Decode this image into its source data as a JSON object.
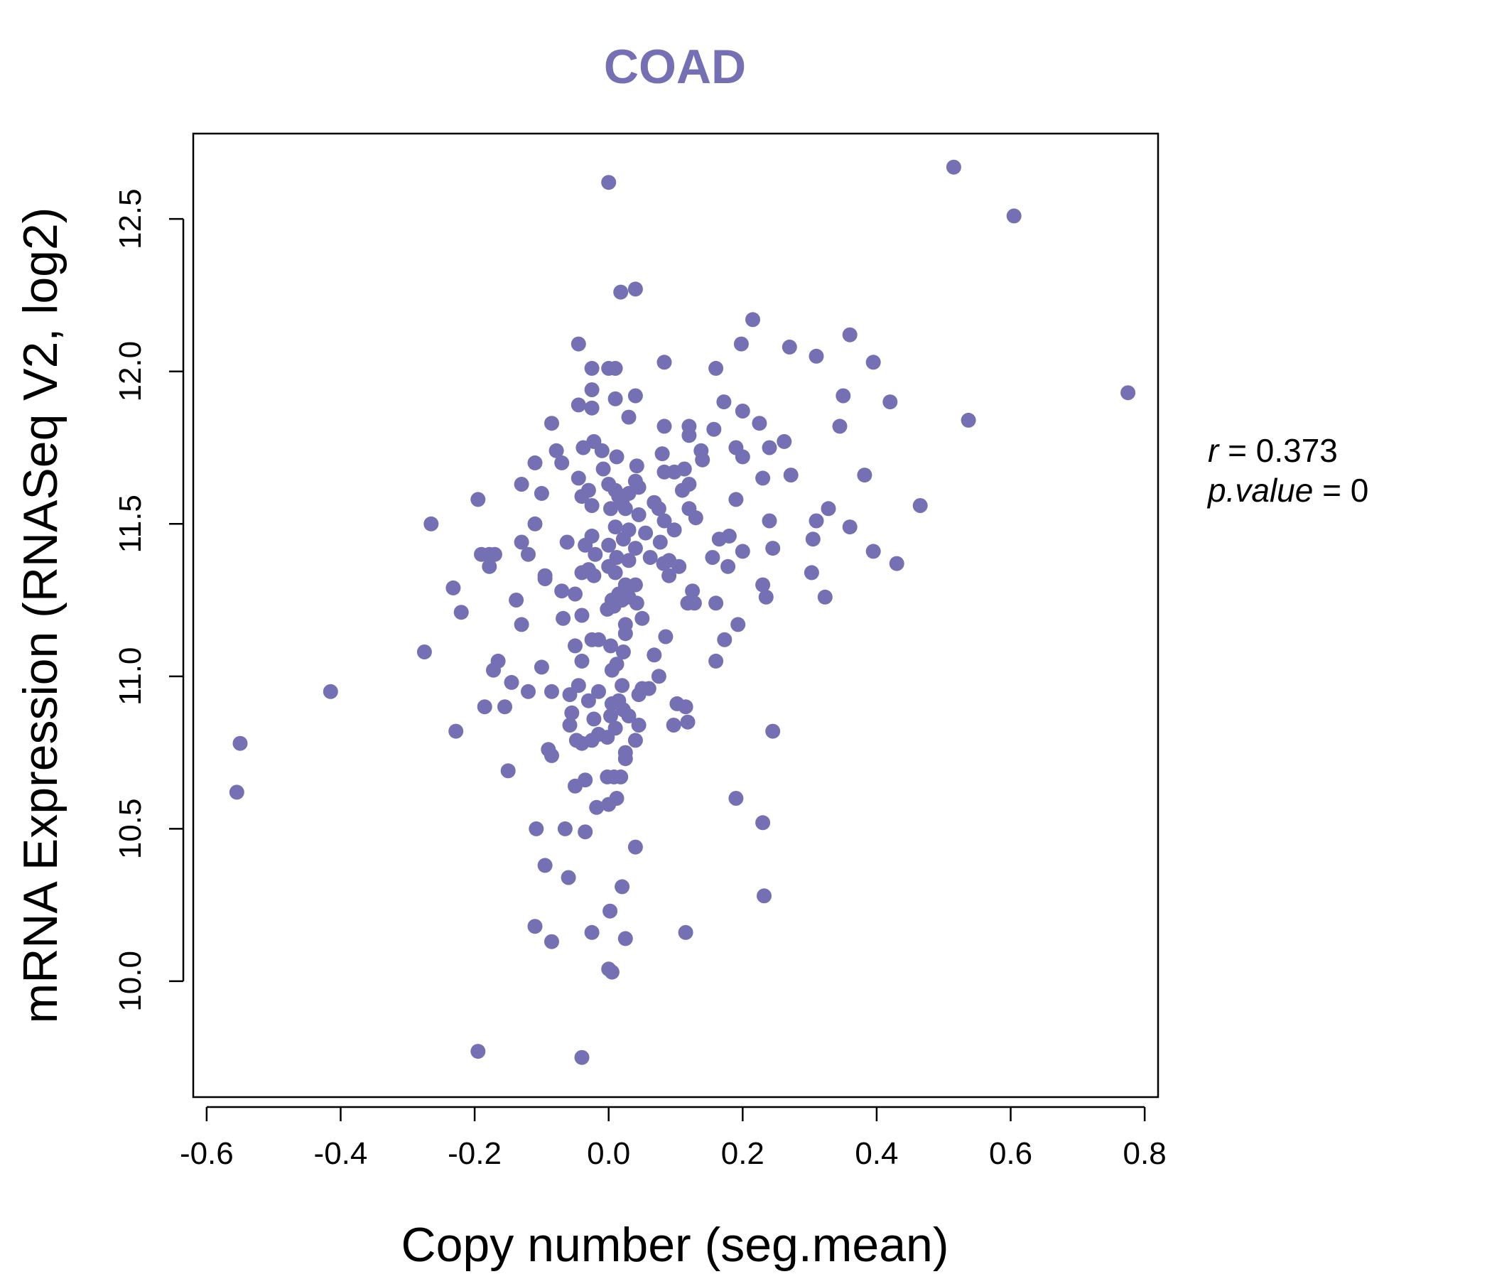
{
  "colors": {
    "accent": "#7570b3",
    "axis": "#000000",
    "background": "#ffffff"
  },
  "chart_data": {
    "type": "scatter",
    "title": "COAD",
    "xlabel": "Copy number (seg.mean)",
    "ylabel": "mRNA Expression (RNASeq V2, log2)",
    "xlim": [
      -0.62,
      0.82
    ],
    "ylim": [
      9.62,
      12.78
    ],
    "xticks": [
      -0.6,
      -0.4,
      -0.2,
      0.0,
      0.2,
      0.4,
      0.6,
      0.8
    ],
    "xtick_labels": [
      "-0.6",
      "-0.4",
      "-0.2",
      "0.0",
      "0.2",
      "0.4",
      "0.6",
      "0.8"
    ],
    "yticks": [
      10.0,
      10.5,
      11.0,
      11.5,
      12.0,
      12.5
    ],
    "ytick_labels": [
      "10.0",
      "10.5",
      "11.0",
      "11.5",
      "12.0",
      "12.5"
    ],
    "grid": false,
    "annotation": {
      "r_label": "r",
      "r_eq": " = ",
      "r_value": "0.373",
      "p_label": "p.value",
      "p_eq": " = ",
      "p_value": "0"
    },
    "points": [
      [
        0.0,
        12.62
      ],
      [
        0.515,
        12.67
      ],
      [
        0.605,
        12.51
      ],
      [
        0.775,
        11.93
      ],
      [
        0.42,
        11.9
      ],
      [
        0.35,
        11.92
      ],
      [
        0.537,
        11.84
      ],
      [
        0.345,
        11.82
      ],
      [
        0.382,
        11.66
      ],
      [
        0.465,
        11.56
      ],
      [
        0.328,
        11.55
      ],
      [
        0.31,
        11.51
      ],
      [
        0.36,
        11.49
      ],
      [
        0.305,
        11.45
      ],
      [
        0.395,
        11.41
      ],
      [
        0.43,
        11.37
      ],
      [
        0.303,
        11.34
      ],
      [
        0.323,
        11.26
      ],
      [
        0.04,
        12.27
      ],
      [
        0.018,
        12.26
      ],
      [
        0.215,
        12.17
      ],
      [
        0.36,
        12.12
      ],
      [
        0.27,
        12.08
      ],
      [
        0.198,
        12.09
      ],
      [
        0.31,
        12.05
      ],
      [
        0.395,
        12.03
      ],
      [
        -0.045,
        12.09
      ],
      [
        0.083,
        12.03
      ],
      [
        0.16,
        12.01
      ],
      [
        0.0,
        12.01
      ],
      [
        0.01,
        12.01
      ],
      [
        -0.025,
        12.01
      ],
      [
        -0.025,
        11.94
      ],
      [
        0.04,
        11.92
      ],
      [
        0.01,
        11.91
      ],
      [
        -0.045,
        11.89
      ],
      [
        -0.025,
        11.88
      ],
      [
        0.172,
        11.9
      ],
      [
        0.2,
        11.87
      ],
      [
        0.03,
        11.85
      ],
      [
        -0.085,
        11.83
      ],
      [
        0.083,
        11.82
      ],
      [
        0.12,
        11.82
      ],
      [
        0.225,
        11.83
      ],
      [
        0.157,
        11.81
      ],
      [
        0.12,
        11.79
      ],
      [
        -0.022,
        11.77
      ],
      [
        0.262,
        11.77
      ],
      [
        0.24,
        11.75
      ],
      [
        0.19,
        11.75
      ],
      [
        -0.038,
        11.75
      ],
      [
        -0.01,
        11.74
      ],
      [
        0.138,
        11.74
      ],
      [
        0.012,
        11.72
      ],
      [
        0.08,
        11.73
      ],
      [
        0.14,
        11.71
      ],
      [
        0.2,
        11.72
      ],
      [
        -0.078,
        11.74
      ],
      [
        -0.11,
        11.7
      ],
      [
        -0.07,
        11.7
      ],
      [
        0.042,
        11.69
      ],
      [
        -0.008,
        11.68
      ],
      [
        0.083,
        11.67
      ],
      [
        0.098,
        11.67
      ],
      [
        0.113,
        11.68
      ],
      [
        0.04,
        11.64
      ],
      [
        0.12,
        11.63
      ],
      [
        0.272,
        11.66
      ],
      [
        0.23,
        11.65
      ],
      [
        -0.045,
        11.65
      ],
      [
        0.0,
        11.63
      ],
      [
        -0.13,
        11.63
      ],
      [
        0.045,
        11.62
      ],
      [
        0.01,
        11.61
      ],
      [
        0.11,
        11.61
      ],
      [
        -0.03,
        11.61
      ],
      [
        -0.1,
        11.6
      ],
      [
        0.03,
        11.6
      ],
      [
        -0.04,
        11.59
      ],
      [
        0.015,
        11.59
      ],
      [
        0.19,
        11.58
      ],
      [
        -0.195,
        11.58
      ],
      [
        0.068,
        11.57
      ],
      [
        0.02,
        11.57
      ],
      [
        -0.025,
        11.56
      ],
      [
        0.003,
        11.55
      ],
      [
        0.075,
        11.55
      ],
      [
        0.025,
        11.55
      ],
      [
        0.12,
        11.55
      ],
      [
        0.13,
        11.52
      ],
      [
        0.045,
        11.53
      ],
      [
        0.083,
        11.51
      ],
      [
        0.24,
        11.51
      ],
      [
        -0.265,
        11.5
      ],
      [
        -0.11,
        11.5
      ],
      [
        0.01,
        11.49
      ],
      [
        0.098,
        11.48
      ],
      [
        0.03,
        11.48
      ],
      [
        0.055,
        11.47
      ],
      [
        0.165,
        11.45
      ],
      [
        0.18,
        11.46
      ],
      [
        -0.025,
        11.46
      ],
      [
        0.022,
        11.45
      ],
      [
        -0.062,
        11.44
      ],
      [
        -0.13,
        11.44
      ],
      [
        0.077,
        11.44
      ],
      [
        -0.035,
        11.43
      ],
      [
        0.0,
        11.43
      ],
      [
        0.04,
        11.42
      ],
      [
        0.245,
        11.42
      ],
      [
        0.2,
        11.41
      ],
      [
        -0.17,
        11.4
      ],
      [
        -0.12,
        11.4
      ],
      [
        -0.19,
        11.4
      ],
      [
        -0.178,
        11.4
      ],
      [
        -0.02,
        11.4
      ],
      [
        0.012,
        11.39
      ],
      [
        0.062,
        11.39
      ],
      [
        0.155,
        11.39
      ],
      [
        0.03,
        11.38
      ],
      [
        0.09,
        11.38
      ],
      [
        0.082,
        11.37
      ],
      [
        0.105,
        11.36
      ],
      [
        0.178,
        11.36
      ],
      [
        -0.178,
        11.36
      ],
      [
        -0.03,
        11.35
      ],
      [
        0.0,
        11.36
      ],
      [
        -0.04,
        11.34
      ],
      [
        0.01,
        11.34
      ],
      [
        -0.022,
        11.33
      ],
      [
        0.09,
        11.33
      ],
      [
        -0.095,
        11.33
      ],
      [
        -0.095,
        11.32
      ],
      [
        0.025,
        11.3
      ],
      [
        0.04,
        11.3
      ],
      [
        0.23,
        11.3
      ],
      [
        -0.232,
        11.29
      ],
      [
        -0.07,
        11.28
      ],
      [
        0.125,
        11.28
      ],
      [
        0.015,
        11.27
      ],
      [
        -0.05,
        11.27
      ],
      [
        0.03,
        11.26
      ],
      [
        0.005,
        11.25
      ],
      [
        0.02,
        11.25
      ],
      [
        -0.138,
        11.25
      ],
      [
        0.042,
        11.24
      ],
      [
        0.118,
        11.24
      ],
      [
        0.235,
        11.26
      ],
      [
        0.16,
        11.24
      ],
      [
        0.128,
        11.24
      ],
      [
        0.008,
        11.23
      ],
      [
        -0.002,
        11.22
      ],
      [
        -0.22,
        11.21
      ],
      [
        -0.04,
        11.2
      ],
      [
        -0.068,
        11.19
      ],
      [
        0.05,
        11.19
      ],
      [
        0.193,
        11.17
      ],
      [
        -0.13,
        11.17
      ],
      [
        0.025,
        11.17
      ],
      [
        0.025,
        11.14
      ],
      [
        0.085,
        11.13
      ],
      [
        -0.025,
        11.12
      ],
      [
        -0.015,
        11.12
      ],
      [
        0.173,
        11.12
      ],
      [
        -0.05,
        11.1
      ],
      [
        0.003,
        11.1
      ],
      [
        -0.275,
        11.08
      ],
      [
        0.022,
        11.08
      ],
      [
        0.068,
        11.07
      ],
      [
        0.16,
        11.05
      ],
      [
        -0.165,
        11.05
      ],
      [
        -0.04,
        11.05
      ],
      [
        0.012,
        11.04
      ],
      [
        -0.172,
        11.02
      ],
      [
        -0.1,
        11.03
      ],
      [
        0.005,
        11.02
      ],
      [
        0.075,
        11.0
      ],
      [
        -0.145,
        10.98
      ],
      [
        -0.045,
        10.97
      ],
      [
        0.02,
        10.97
      ],
      [
        0.05,
        10.96
      ],
      [
        0.06,
        10.96
      ],
      [
        -0.12,
        10.95
      ],
      [
        -0.015,
        10.95
      ],
      [
        -0.085,
        10.95
      ],
      [
        -0.415,
        10.95
      ],
      [
        0.045,
        10.94
      ],
      [
        -0.058,
        10.94
      ],
      [
        0.015,
        10.92
      ],
      [
        -0.03,
        10.92
      ],
      [
        0.102,
        10.91
      ],
      [
        0.115,
        10.9
      ],
      [
        -0.185,
        10.9
      ],
      [
        -0.155,
        10.9
      ],
      [
        0.005,
        10.91
      ],
      [
        0.022,
        10.89
      ],
      [
        -0.055,
        10.88
      ],
      [
        0.03,
        10.87
      ],
      [
        0.003,
        10.87
      ],
      [
        -0.022,
        10.86
      ],
      [
        0.118,
        10.85
      ],
      [
        0.045,
        10.84
      ],
      [
        0.097,
        10.84
      ],
      [
        -0.058,
        10.84
      ],
      [
        0.01,
        10.83
      ],
      [
        0.245,
        10.82
      ],
      [
        -0.228,
        10.82
      ],
      [
        -0.015,
        10.81
      ],
      [
        -0.002,
        10.8
      ],
      [
        -0.025,
        10.79
      ],
      [
        0.04,
        10.79
      ],
      [
        -0.048,
        10.79
      ],
      [
        -0.04,
        10.78
      ],
      [
        -0.55,
        10.78
      ],
      [
        -0.09,
        10.76
      ],
      [
        0.025,
        10.75
      ],
      [
        -0.085,
        10.74
      ],
      [
        0.025,
        10.73
      ],
      [
        -0.15,
        10.69
      ],
      [
        -0.002,
        10.67
      ],
      [
        0.008,
        10.67
      ],
      [
        0.018,
        10.67
      ],
      [
        -0.035,
        10.66
      ],
      [
        -0.05,
        10.64
      ],
      [
        -0.555,
        10.62
      ],
      [
        0.19,
        10.6
      ],
      [
        0.012,
        10.6
      ],
      [
        0.0,
        10.58
      ],
      [
        -0.018,
        10.57
      ],
      [
        0.23,
        10.52
      ],
      [
        -0.108,
        10.5
      ],
      [
        -0.065,
        10.5
      ],
      [
        -0.035,
        10.49
      ],
      [
        0.04,
        10.44
      ],
      [
        -0.095,
        10.38
      ],
      [
        -0.06,
        10.34
      ],
      [
        0.02,
        10.31
      ],
      [
        0.232,
        10.28
      ],
      [
        0.002,
        10.23
      ],
      [
        -0.11,
        10.18
      ],
      [
        -0.025,
        10.16
      ],
      [
        0.115,
        10.16
      ],
      [
        0.025,
        10.14
      ],
      [
        -0.085,
        10.13
      ],
      [
        0.0,
        10.04
      ],
      [
        0.005,
        10.03
      ],
      [
        -0.195,
        9.77
      ],
      [
        -0.04,
        9.75
      ]
    ]
  }
}
